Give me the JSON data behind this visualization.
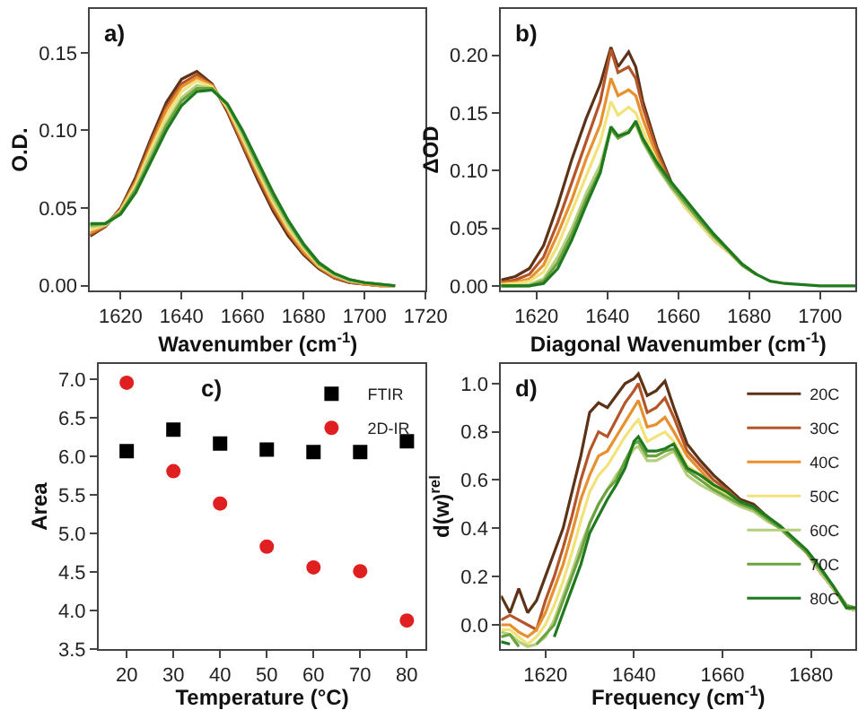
{
  "chart_data": [
    {
      "type": "line",
      "annotations": [
        "a)"
      ],
      "xlabel": "Wavenumber (cm$^{-1}$)",
      "ylabel": "O.D.",
      "xlim": [
        1610,
        1720
      ],
      "xticks": [
        1620,
        1640,
        1660,
        1680,
        1700,
        1720
      ],
      "ylim": [
        -0.003,
        0.178
      ],
      "yticks": [
        {
          "value": 0,
          "label": "0.00"
        },
        {
          "value": 0.05,
          "label": "0.05"
        },
        {
          "value": 0.1,
          "label": "0.10"
        },
        {
          "value": 0.15,
          "label": "0.15"
        }
      ],
      "x": [
        1610,
        1615,
        1620,
        1625,
        1630,
        1635,
        1640,
        1645,
        1650,
        1655,
        1660,
        1665,
        1670,
        1675,
        1680,
        1685,
        1690,
        1695,
        1700,
        1705,
        1710
      ],
      "series": [
        {
          "color": "#5c3317",
          "values": [
            0.032,
            0.038,
            0.05,
            0.07,
            0.095,
            0.118,
            0.133,
            0.138,
            0.13,
            0.112,
            0.09,
            0.068,
            0.048,
            0.032,
            0.02,
            0.011,
            0.005,
            0.002,
            0.001,
            0,
            0
          ]
        },
        {
          "color": "#b5562a",
          "values": [
            0.033,
            0.038,
            0.049,
            0.068,
            0.093,
            0.115,
            0.13,
            0.136,
            0.129,
            0.113,
            0.091,
            0.07,
            0.05,
            0.034,
            0.021,
            0.012,
            0.005,
            0.002,
            0.001,
            0,
            0
          ]
        },
        {
          "color": "#e8902e",
          "values": [
            0.034,
            0.039,
            0.049,
            0.067,
            0.09,
            0.113,
            0.128,
            0.134,
            0.129,
            0.114,
            0.093,
            0.072,
            0.052,
            0.035,
            0.022,
            0.012,
            0.006,
            0.003,
            0.001,
            0,
            0
          ]
        },
        {
          "color": "#f2e27a",
          "values": [
            0.036,
            0.039,
            0.048,
            0.065,
            0.088,
            0.109,
            0.125,
            0.132,
            0.128,
            0.115,
            0.095,
            0.074,
            0.054,
            0.037,
            0.024,
            0.013,
            0.007,
            0.003,
            0.002,
            0.001,
            0
          ]
        },
        {
          "color": "#b5cf7c",
          "values": [
            0.038,
            0.039,
            0.047,
            0.063,
            0.085,
            0.105,
            0.121,
            0.129,
            0.127,
            0.116,
            0.097,
            0.076,
            0.056,
            0.039,
            0.025,
            0.014,
            0.007,
            0.003,
            0.002,
            0.001,
            0
          ]
        },
        {
          "color": "#6aa33f",
          "values": [
            0.039,
            0.04,
            0.047,
            0.062,
            0.082,
            0.103,
            0.119,
            0.127,
            0.127,
            0.117,
            0.099,
            0.078,
            0.058,
            0.041,
            0.026,
            0.014,
            0.008,
            0.004,
            0.002,
            0.001,
            0
          ]
        },
        {
          "color": "#1f7a1f",
          "values": [
            0.04,
            0.04,
            0.046,
            0.06,
            0.08,
            0.1,
            0.116,
            0.125,
            0.126,
            0.117,
            0.1,
            0.08,
            0.06,
            0.042,
            0.027,
            0.015,
            0.008,
            0.004,
            0.002,
            0.001,
            0
          ]
        }
      ]
    },
    {
      "type": "line",
      "annotations": [
        "b)"
      ],
      "xlabel": "Diagonal Wavenumber (cm$^{-1}$)",
      "ylabel": "ΔOD",
      "xlim": [
        1610,
        1710
      ],
      "xticks": [
        1620,
        1640,
        1660,
        1680,
        1700
      ],
      "ylim": [
        -0.004,
        0.24
      ],
      "yticks": [
        {
          "value": 0,
          "label": "0.00"
        },
        {
          "value": 0.05,
          "label": "0.05"
        },
        {
          "value": 0.1,
          "label": "0.10"
        },
        {
          "value": 0.15,
          "label": "0.15"
        },
        {
          "value": 0.2,
          "label": "0.20"
        }
      ],
      "x": [
        1610,
        1614,
        1618,
        1622,
        1626,
        1630,
        1634,
        1638,
        1641,
        1643,
        1646,
        1648,
        1650,
        1654,
        1658,
        1662,
        1666,
        1670,
        1674,
        1678,
        1682,
        1686,
        1690,
        1700,
        1710
      ],
      "series": [
        {
          "color": "#5c3317",
          "values": [
            0.005,
            0.008,
            0.015,
            0.035,
            0.07,
            0.11,
            0.145,
            0.175,
            0.207,
            0.19,
            0.203,
            0.19,
            0.16,
            0.12,
            0.09,
            0.07,
            0.055,
            0.04,
            0.03,
            0.018,
            0.01,
            null,
            null,
            null,
            null
          ]
        },
        {
          "color": "#b5562a",
          "values": [
            0.003,
            0.005,
            0.01,
            0.025,
            0.055,
            0.09,
            0.125,
            0.16,
            0.205,
            0.185,
            0.19,
            0.18,
            0.155,
            0.117,
            0.088,
            0.07,
            0.055,
            0.04,
            0.03,
            0.018,
            0.01,
            null,
            null,
            null,
            null
          ]
        },
        {
          "color": "#e8902e",
          "values": [
            0.002,
            0.003,
            0.006,
            0.018,
            0.045,
            0.075,
            0.11,
            0.14,
            0.18,
            0.165,
            0.17,
            0.165,
            0.145,
            0.112,
            0.086,
            0.068,
            0.054,
            0.04,
            0.03,
            0.018,
            0.01,
            null,
            null,
            null,
            null
          ]
        },
        {
          "color": "#f2e27a",
          "values": [
            0.001,
            0.002,
            0.004,
            0.012,
            0.035,
            0.065,
            0.095,
            0.125,
            0.16,
            0.148,
            0.155,
            0.15,
            0.135,
            0.108,
            0.085,
            0.068,
            0.054,
            0.04,
            0.03,
            0.018,
            0.01,
            null,
            null,
            null,
            null
          ]
        },
        {
          "color": "#b5cf7c",
          "values": [
            0,
            0,
            0.001,
            0.006,
            0.025,
            0.05,
            0.08,
            0.105,
            0.138,
            0.13,
            0.135,
            0.14,
            0.125,
            0.103,
            0.085,
            0.07,
            0.056,
            0.042,
            0.031,
            0.018,
            0.01,
            null,
            null,
            null,
            null
          ]
        },
        {
          "color": "#6aa33f",
          "values": [
            0,
            0,
            0,
            0.004,
            0.02,
            0.045,
            0.075,
            0.1,
            0.136,
            0.128,
            0.133,
            0.142,
            0.126,
            0.105,
            0.087,
            0.072,
            0.057,
            0.043,
            0.031,
            0.018,
            0.01,
            null,
            null,
            null,
            null
          ]
        },
        {
          "color": "#1f7a1f",
          "values": [
            0,
            0,
            0,
            0.002,
            0.015,
            0.04,
            0.07,
            0.098,
            0.138,
            0.13,
            0.133,
            0.143,
            0.128,
            0.107,
            0.09,
            0.075,
            0.06,
            0.045,
            0.032,
            0.019,
            0.01,
            0.004,
            0.002,
            0,
            0
          ]
        }
      ]
    },
    {
      "type": "scatter",
      "annotations": [
        "c)"
      ],
      "xlabel": "Temperature (°C)",
      "ylabel": "Area",
      "xlim": [
        14,
        84
      ],
      "xticks": [
        20,
        30,
        40,
        50,
        60,
        70,
        80
      ],
      "ylim": [
        3.5,
        7.2
      ],
      "yticks": [
        {
          "value": 3.5,
          "label": "3.5"
        },
        {
          "value": 4,
          "label": "4.0"
        },
        {
          "value": 4.5,
          "label": "4.5"
        },
        {
          "value": 5,
          "label": "5.0"
        },
        {
          "value": 5.5,
          "label": "5.5"
        },
        {
          "value": 6,
          "label": "6.0"
        },
        {
          "value": 6.5,
          "label": "6.5"
        },
        {
          "value": 7,
          "label": "7.0"
        }
      ],
      "legend": "top right",
      "x": [
        20,
        30,
        40,
        50,
        60,
        70,
        80
      ],
      "series": [
        {
          "name": "FTIR",
          "color": "#000000",
          "marker": "square",
          "values": [
            6.07,
            6.35,
            6.17,
            6.09,
            6.06,
            6.06,
            6.2
          ]
        },
        {
          "name": "2D-IR",
          "color": "#e02020",
          "marker": "circle",
          "values": [
            6.96,
            5.81,
            5.39,
            4.83,
            4.56,
            4.51,
            3.87
          ]
        }
      ]
    },
    {
      "type": "line",
      "annotations": [
        "d)"
      ],
      "xlabel": "Frequency (cm$^{-1}$)",
      "ylabel": "d(w)$^{rel}$",
      "xlim": [
        1610,
        1690
      ],
      "xticks": [
        1620,
        1640,
        1660,
        1680
      ],
      "ylim": [
        -0.1,
        1.08
      ],
      "yticks": [
        {
          "value": 0,
          "label": "0.0"
        },
        {
          "value": 0.2,
          "label": "0.2"
        },
        {
          "value": 0.4,
          "label": "0.4"
        },
        {
          "value": 0.6,
          "label": "0.6"
        },
        {
          "value": 0.8,
          "label": "0.8"
        },
        {
          "value": 1,
          "label": "1.0"
        }
      ],
      "legend": "top right",
      "x": [
        1610,
        1612,
        1614,
        1616,
        1618,
        1620,
        1622,
        1624,
        1626,
        1628,
        1630,
        1632,
        1634,
        1636,
        1638,
        1640,
        1641,
        1643,
        1645,
        1647,
        1649,
        1652,
        1655,
        1658,
        1661,
        1664,
        1667,
        1670,
        1673,
        1676,
        1679,
        1682,
        1685,
        1688,
        1690
      ],
      "series": [
        {
          "name": "20C",
          "color": "#5c3317",
          "values": [
            0.12,
            0.05,
            0.15,
            0.05,
            0.1,
            0.2,
            0.3,
            0.4,
            0.55,
            0.7,
            0.88,
            0.92,
            0.9,
            0.95,
            1.0,
            1.02,
            1.04,
            0.95,
            0.97,
            1.01,
            0.9,
            0.75,
            0.68,
            0.62,
            0.57,
            0.52,
            0.5,
            0.45,
            0.4,
            0.35,
            0.3,
            0.22,
            0.15,
            0.08,
            0.07
          ]
        },
        {
          "name": "30C",
          "color": "#b5562a",
          "values": [
            0.02,
            0.04,
            0.02,
            0,
            -0.02,
            0.1,
            0.2,
            0.32,
            0.45,
            0.6,
            0.72,
            0.8,
            0.78,
            0.85,
            0.92,
            0.97,
            1.0,
            0.88,
            0.9,
            0.94,
            0.86,
            0.72,
            0.66,
            0.6,
            0.56,
            0.51,
            0.49,
            0.45,
            0.4,
            0.35,
            0.3,
            0.22,
            0.15,
            0.07,
            0.06
          ]
        },
        {
          "name": "40C",
          "color": "#e8902e",
          "values": [
            0,
            0,
            -0.03,
            -0.05,
            -0.02,
            0.05,
            0.15,
            0.25,
            0.38,
            0.52,
            0.62,
            0.7,
            0.72,
            0.78,
            0.84,
            0.9,
            0.93,
            0.82,
            0.83,
            0.86,
            0.8,
            0.7,
            0.64,
            0.58,
            0.55,
            0.5,
            0.48,
            0.44,
            0.4,
            0.35,
            0.3,
            0.22,
            0.15,
            0.07,
            0.06
          ]
        },
        {
          "name": "50C",
          "color": "#f2e27a",
          "values": [
            -0.02,
            -0.02,
            -0.05,
            -0.08,
            -0.05,
            0,
            0.08,
            0.18,
            0.3,
            0.43,
            0.55,
            0.62,
            0.66,
            0.72,
            0.78,
            0.83,
            0.85,
            0.76,
            0.78,
            0.8,
            0.76,
            0.66,
            0.62,
            0.57,
            0.54,
            0.5,
            0.48,
            0.44,
            0.4,
            0.35,
            0.3,
            0.23,
            0.16,
            0.08,
            0.07
          ]
        },
        {
          "name": "60C",
          "color": "#b5cf7c",
          "values": [
            -0.03,
            -0.04,
            -0.07,
            -0.09,
            -0.08,
            -0.05,
            0.02,
            0.12,
            0.22,
            0.33,
            0.42,
            0.5,
            0.56,
            0.62,
            0.67,
            0.73,
            0.74,
            0.68,
            0.68,
            0.7,
            0.72,
            0.62,
            0.58,
            0.55,
            0.52,
            0.49,
            0.47,
            0.43,
            0.4,
            0.35,
            0.3,
            0.22,
            0.15,
            0.07,
            0.06
          ]
        },
        {
          "name": "70C",
          "color": "#6aa33f",
          "values": [
            -0.05,
            -0.04,
            -0.09,
            null,
            -0.08,
            -0.04,
            0,
            0.1,
            0.2,
            0.3,
            0.42,
            0.5,
            0.56,
            0.6,
            0.68,
            0.75,
            0.76,
            0.7,
            0.7,
            0.72,
            0.73,
            0.64,
            0.6,
            0.56,
            0.53,
            0.5,
            0.48,
            0.44,
            0.4,
            0.35,
            0.3,
            0.23,
            0.16,
            0.08,
            0.07
          ]
        },
        {
          "name": "80C",
          "color": "#1f7a1f",
          "values": [
            -0.07,
            -0.08,
            null,
            null,
            null,
            null,
            -0.05,
            0.05,
            0.15,
            0.25,
            0.38,
            0.45,
            0.52,
            0.58,
            0.65,
            0.76,
            0.78,
            0.72,
            0.72,
            0.73,
            0.75,
            0.65,
            0.62,
            0.58,
            0.55,
            0.51,
            0.49,
            0.45,
            0.41,
            0.36,
            0.31,
            0.24,
            0.16,
            0.07,
            0.07
          ]
        }
      ]
    }
  ]
}
